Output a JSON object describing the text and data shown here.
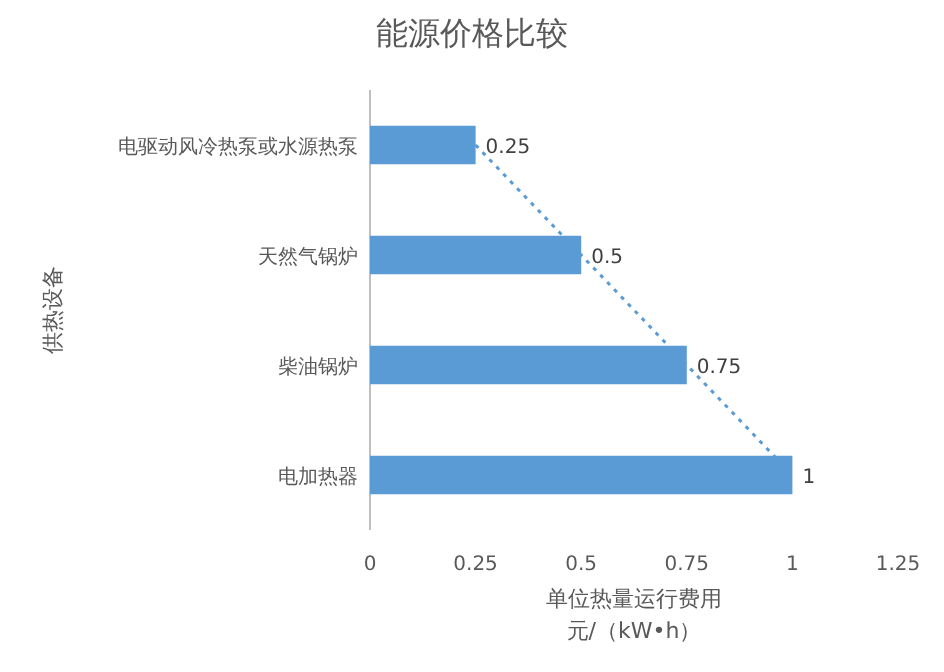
{
  "chart_data": {
    "type": "bar",
    "orientation": "horizontal",
    "title": "能源价格比较",
    "xlabel": "单位热量运行费用元/（kW•h）",
    "ylabel": "供热设备",
    "categories": [
      "电驱动风冷热泵或水源热泵",
      "天然气锅炉",
      "柴油锅炉",
      "电加热器"
    ],
    "series": [
      {
        "type": "bar",
        "color": "#5b9bd5",
        "values": [
          0.25,
          0.5,
          0.75,
          1
        ],
        "data_labels": true
      },
      {
        "type": "line",
        "color": "#5b9bd5",
        "line_style": "dotted",
        "marker": "none",
        "values": [
          0.25,
          0.5,
          0.75,
          1
        ]
      }
    ],
    "xlim": [
      0,
      1.25
    ],
    "xticks": [
      0,
      0.25,
      0.5,
      0.75,
      1,
      1.25
    ],
    "grid": false
  }
}
